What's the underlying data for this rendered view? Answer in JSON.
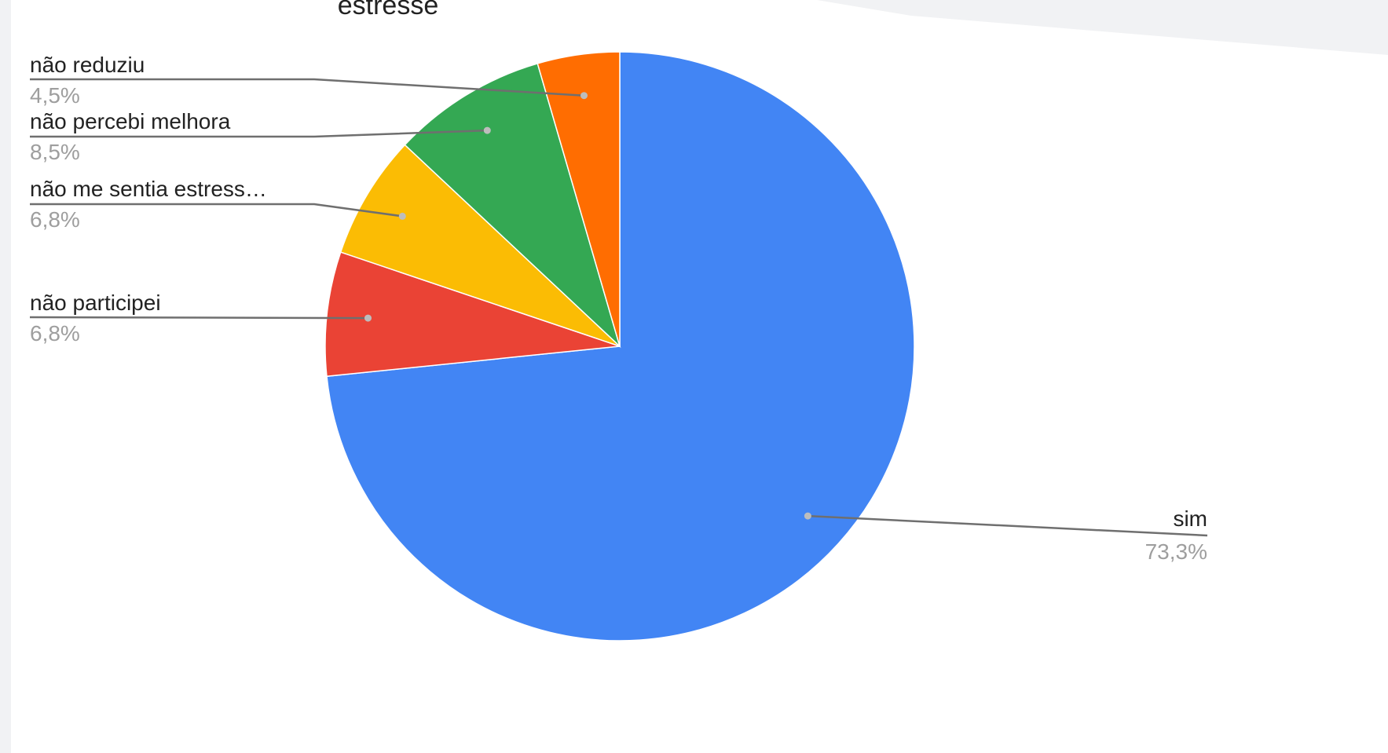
{
  "chart_data": {
    "type": "pie",
    "title": "estresse",
    "slices": [
      {
        "label": "sim",
        "percent_label": "73,3%",
        "value": 73.3,
        "color": "#4285f4"
      },
      {
        "label": "não participei",
        "percent_label": "6,8%",
        "value": 6.8,
        "color": "#ea4335"
      },
      {
        "label": "não me sentia estress…",
        "percent_label": "6,8%",
        "value": 6.8,
        "color": "#fbbc04"
      },
      {
        "label": "não percebi melhora",
        "percent_label": "8,5%",
        "value": 8.5,
        "color": "#34a853"
      },
      {
        "label": "não reduziu",
        "percent_label": "4,5%",
        "value": 4.5,
        "color": "#ff6d01"
      }
    ],
    "start_angle": "12 o'clock",
    "direction": "clockwise",
    "legend": "none (labels with leader lines)"
  }
}
